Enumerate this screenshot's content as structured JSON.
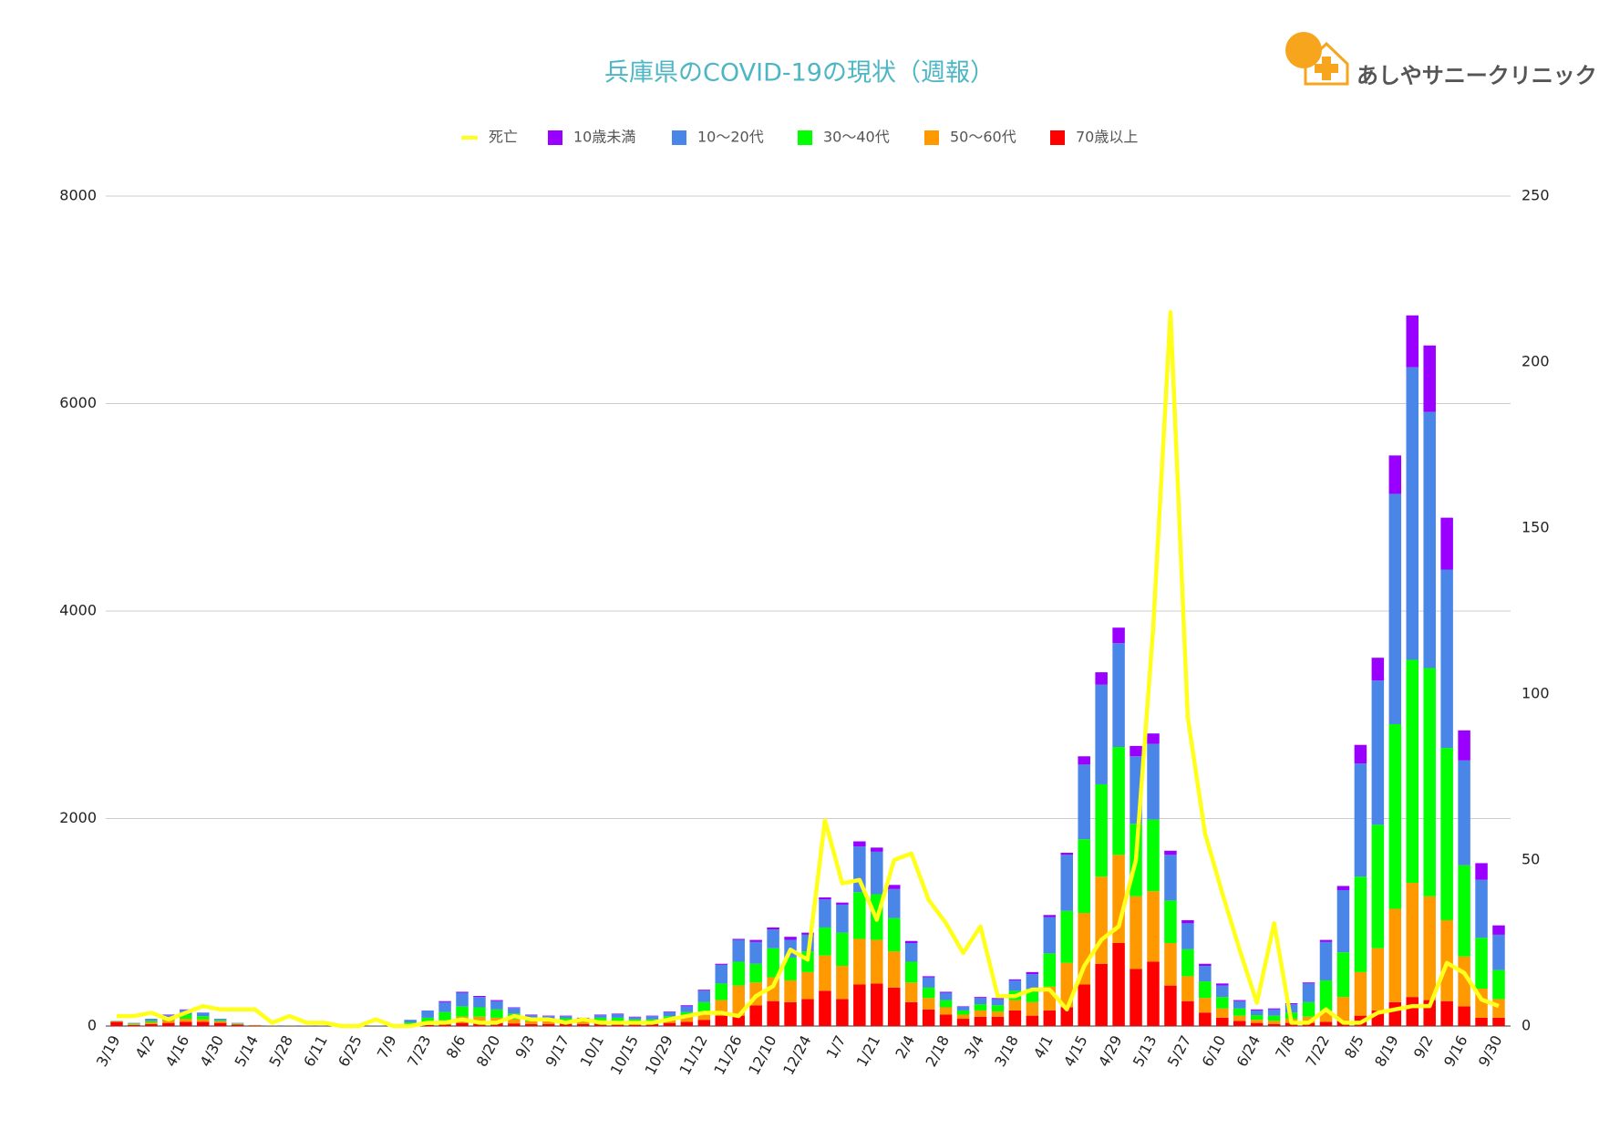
{
  "logo_text": "あしやサニークリニック",
  "chart_data": {
    "type": "bar",
    "stacked": true,
    "title": "兵庫県のCOVID-19の現状（週報）",
    "categories": [
      "3/19",
      null,
      "4/2",
      null,
      "4/16",
      null,
      "4/30",
      null,
      "5/14",
      null,
      "5/28",
      null,
      "6/11",
      null,
      "6/25",
      null,
      "7/9",
      null,
      "7/23",
      null,
      "8/6",
      null,
      "8/20",
      null,
      "9/3",
      null,
      "9/17",
      null,
      "10/1",
      null,
      "10/15",
      null,
      "10/29",
      null,
      "11/12",
      null,
      "11/26",
      null,
      "12/10",
      null,
      "12/24",
      null,
      "1/7",
      null,
      "1/21",
      null,
      "2/4",
      null,
      "2/18",
      null,
      "3/4",
      null,
      "3/18",
      null,
      "4/1",
      null,
      "4/15",
      null,
      "4/29",
      null,
      "5/13",
      null,
      "5/27",
      null,
      "6/10",
      null,
      "6/24",
      null,
      "7/8",
      null,
      "7/22",
      null,
      "8/5",
      null,
      "8/19",
      null,
      "9/2",
      null,
      "9/16",
      null,
      "9/30"
    ],
    "ylim": [
      0,
      8000
    ],
    "yticks": [
      0,
      2000,
      4000,
      6000,
      8000
    ],
    "y2lim": [
      0,
      250
    ],
    "y2ticks": [
      0,
      50,
      100,
      150,
      200,
      250
    ],
    "grid": true,
    "legend": "top",
    "series": [
      {
        "name": "死亡",
        "color": "#ffff1a",
        "type": "line",
        "axis": "y2",
        "values": [
          3,
          3,
          4,
          2,
          4,
          6,
          5,
          5,
          5,
          1,
          3,
          1,
          1,
          0,
          0,
          2,
          0,
          0,
          1,
          1,
          2,
          1,
          1,
          3,
          2,
          2,
          1,
          2,
          1,
          1,
          1,
          1,
          2,
          3,
          4,
          4,
          3,
          9,
          12,
          23,
          20,
          62,
          43,
          44,
          32,
          50,
          52,
          38,
          31,
          22,
          30,
          9,
          9,
          11,
          11,
          5,
          18,
          26,
          30,
          50,
          120,
          215,
          93,
          58,
          40,
          23,
          7,
          31,
          1,
          1,
          5,
          1,
          1,
          4,
          5,
          6,
          6,
          19,
          16,
          8,
          6
        ]
      },
      {
        "name": "10歳未満",
        "color": "#9900ff",
        "values": [
          0,
          0,
          0,
          5,
          5,
          0,
          0,
          0,
          0,
          0,
          0,
          0,
          0,
          0,
          0,
          0,
          0,
          0,
          0,
          10,
          10,
          10,
          10,
          5,
          5,
          5,
          5,
          5,
          5,
          5,
          5,
          5,
          5,
          10,
          10,
          10,
          10,
          20,
          20,
          30,
          20,
          20,
          20,
          50,
          40,
          40,
          20,
          10,
          10,
          5,
          10,
          10,
          10,
          20,
          20,
          20,
          80,
          120,
          150,
          100,
          100,
          40,
          30,
          20,
          20,
          10,
          10,
          10,
          10,
          10,
          20,
          40,
          180,
          220,
          370,
          500,
          640,
          500,
          290,
          160,
          90
        ]
      },
      {
        "name": "10〜20代",
        "color": "#4a86e8",
        "values": [
          2,
          6,
          20,
          25,
          45,
          35,
          15,
          5,
          1,
          1,
          0,
          0,
          0,
          0,
          0,
          2,
          3,
          25,
          70,
          95,
          130,
          100,
          80,
          55,
          30,
          25,
          20,
          15,
          25,
          35,
          20,
          30,
          40,
          55,
          110,
          180,
          210,
          210,
          180,
          170,
          160,
          270,
          270,
          440,
          410,
          280,
          180,
          100,
          70,
          35,
          60,
          60,
          100,
          140,
          350,
          540,
          720,
          960,
          1000,
          650,
          730,
          440,
          250,
          150,
          110,
          70,
          45,
          60,
          80,
          180,
          370,
          600,
          1090,
          1390,
          2220,
          2820,
          2470,
          1720,
          1010,
          560,
          340
        ]
      },
      {
        "name": "30〜40代",
        "color": "#00ff00",
        "values": [
          3,
          6,
          15,
          25,
          40,
          30,
          10,
          5,
          1,
          1,
          0,
          0,
          0,
          0,
          0,
          1,
          3,
          20,
          50,
          80,
          100,
          90,
          80,
          55,
          30,
          25,
          25,
          20,
          25,
          30,
          25,
          25,
          35,
          50,
          90,
          160,
          230,
          180,
          280,
          220,
          200,
          270,
          320,
          450,
          440,
          320,
          200,
          100,
          70,
          40,
          60,
          60,
          90,
          130,
          320,
          500,
          710,
          890,
          1040,
          700,
          690,
          410,
          260,
          160,
          110,
          70,
          45,
          50,
          60,
          140,
          300,
          430,
          920,
          1190,
          1780,
          2150,
          2200,
          1660,
          880,
          490,
          280
        ]
      },
      {
        "name": "50〜60代",
        "color": "#ff9900",
        "values": [
          5,
          8,
          15,
          25,
          30,
          25,
          15,
          5,
          3,
          1,
          1,
          1,
          1,
          1,
          1,
          1,
          2,
          10,
          20,
          40,
          60,
          60,
          50,
          40,
          25,
          25,
          25,
          20,
          30,
          25,
          20,
          20,
          30,
          45,
          80,
          150,
          290,
          220,
          230,
          210,
          260,
          340,
          320,
          440,
          420,
          350,
          190,
          110,
          70,
          40,
          60,
          50,
          100,
          130,
          230,
          430,
          690,
          840,
          850,
          700,
          680,
          410,
          240,
          140,
          90,
          50,
          30,
          30,
          40,
          60,
          100,
          230,
          420,
          600,
          900,
          1100,
          1000,
          780,
          480,
          280,
          180
        ]
      },
      {
        "name": "70歳以上",
        "color": "#ff0000",
        "values": [
          40,
          10,
          20,
          30,
          40,
          40,
          30,
          15,
          5,
          2,
          1,
          1,
          1,
          1,
          1,
          1,
          2,
          5,
          10,
          15,
          30,
          30,
          30,
          25,
          20,
          20,
          25,
          20,
          25,
          25,
          20,
          20,
          30,
          40,
          60,
          100,
          100,
          200,
          240,
          230,
          260,
          340,
          260,
          400,
          410,
          370,
          230,
          160,
          110,
          70,
          90,
          90,
          150,
          100,
          150,
          180,
          400,
          600,
          800,
          550,
          620,
          390,
          240,
          130,
          80,
          50,
          30,
          20,
          30,
          30,
          40,
          50,
          100,
          150,
          230,
          280,
          250,
          240,
          190,
          80,
          80
        ]
      }
    ]
  }
}
